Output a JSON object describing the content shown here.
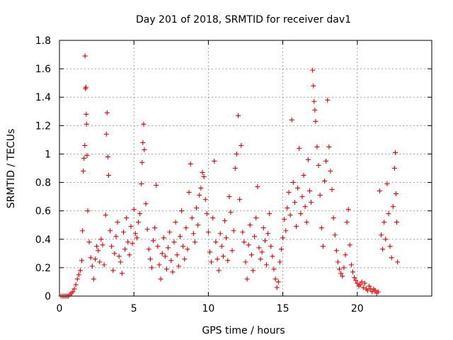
{
  "chart_data": {
    "type": "scatter",
    "title": "Day 201 of 2018, SRMTID for receiver dav1",
    "xlabel": "GPS time / hours",
    "ylabel": "SRMTID / TECUs",
    "xlim": [
      0,
      25
    ],
    "ylim": [
      0,
      1.8
    ],
    "xticks": [
      0,
      5,
      10,
      15,
      20
    ],
    "xtick_labels": [
      "0",
      "5",
      "10",
      "15",
      "20"
    ],
    "yticks": [
      0,
      0.2,
      0.4,
      0.6,
      0.8,
      1.0,
      1.2,
      1.4,
      1.6,
      1.8
    ],
    "ytick_labels": [
      "0",
      "0.2",
      "0.4",
      "0.6",
      "0.8",
      "1",
      "1.2",
      "1.4",
      "1.6",
      "1.8"
    ],
    "grid": true,
    "marker": "+",
    "series_color": "#e00000",
    "series": [
      {
        "name": "SRMTID",
        "points": [
          [
            0.1,
            0.0
          ],
          [
            0.2,
            0.0
          ],
          [
            0.3,
            0.0
          ],
          [
            0.4,
            0.0
          ],
          [
            0.5,
            0.0
          ],
          [
            0.6,
            0.0
          ],
          [
            0.7,
            0.01
          ],
          [
            0.8,
            0.02
          ],
          [
            0.9,
            0.03
          ],
          [
            1.0,
            0.05
          ],
          [
            1.1,
            0.08
          ],
          [
            1.2,
            0.12
          ],
          [
            1.3,
            0.15
          ],
          [
            1.4,
            0.18
          ],
          [
            1.5,
            0.25
          ],
          [
            1.55,
            0.46
          ],
          [
            1.6,
            0.88
          ],
          [
            1.65,
            0.97
          ],
          [
            1.7,
            1.06
          ],
          [
            1.72,
            1.69
          ],
          [
            1.75,
            1.46
          ],
          [
            1.78,
            1.47
          ],
          [
            1.8,
            1.28
          ],
          [
            1.82,
            1.21
          ],
          [
            1.85,
            0.99
          ],
          [
            1.9,
            0.6
          ],
          [
            2.0,
            0.38
          ],
          [
            2.1,
            0.27
          ],
          [
            2.2,
            0.21
          ],
          [
            2.3,
            0.12
          ],
          [
            2.4,
            0.26
          ],
          [
            2.5,
            0.35
          ],
          [
            2.6,
            0.32
          ],
          [
            2.7,
            0.24
          ],
          [
            2.8,
            0.4
          ],
          [
            2.9,
            0.36
          ],
          [
            3.0,
            0.22
          ],
          [
            3.1,
            0.57
          ],
          [
            3.15,
            1.14
          ],
          [
            3.2,
            1.29
          ],
          [
            3.25,
            0.98
          ],
          [
            3.3,
            0.85
          ],
          [
            3.4,
            0.46
          ],
          [
            3.5,
            0.35
          ],
          [
            3.6,
            0.18
          ],
          [
            3.7,
            0.3
          ],
          [
            3.8,
            0.42
          ],
          [
            3.9,
            0.52
          ],
          [
            4.0,
            0.28
          ],
          [
            4.1,
            0.24
          ],
          [
            4.2,
            0.16
          ],
          [
            4.3,
            0.45
          ],
          [
            4.4,
            0.33
          ],
          [
            4.5,
            0.55
          ],
          [
            4.6,
            0.38
          ],
          [
            4.7,
            0.29
          ],
          [
            4.8,
            0.49
          ],
          [
            4.9,
            0.37
          ],
          [
            5.0,
            0.61
          ],
          [
            5.1,
            0.44
          ],
          [
            5.2,
            0.41
          ],
          [
            5.3,
            0.52
          ],
          [
            5.4,
            0.58
          ],
          [
            5.5,
            0.79
          ],
          [
            5.55,
            0.94
          ],
          [
            5.6,
            1.08
          ],
          [
            5.65,
            1.21
          ],
          [
            5.7,
            1.03
          ],
          [
            5.8,
            0.65
          ],
          [
            5.9,
            0.47
          ],
          [
            6.0,
            0.33
          ],
          [
            6.1,
            0.26
          ],
          [
            6.2,
            0.2
          ],
          [
            6.3,
            0.39
          ],
          [
            6.4,
            0.48
          ],
          [
            6.5,
            0.78
          ],
          [
            6.6,
            0.35
          ],
          [
            6.7,
            0.22
          ],
          [
            6.8,
            0.12
          ],
          [
            6.9,
            0.3
          ],
          [
            7.0,
            0.41
          ],
          [
            7.1,
            0.28
          ],
          [
            7.2,
            0.19
          ],
          [
            7.3,
            0.34
          ],
          [
            7.4,
            0.45
          ],
          [
            7.5,
            0.25
          ],
          [
            7.6,
            0.17
          ],
          [
            7.7,
            0.38
          ],
          [
            7.8,
            0.52
          ],
          [
            7.9,
            0.29
          ],
          [
            8.0,
            0.21
          ],
          [
            8.1,
            0.42
          ],
          [
            8.2,
            0.6
          ],
          [
            8.3,
            0.35
          ],
          [
            8.4,
            0.26
          ],
          [
            8.5,
            0.48
          ],
          [
            8.6,
            0.33
          ],
          [
            8.7,
            0.73
          ],
          [
            8.8,
            0.93
          ],
          [
            8.9,
            0.55
          ],
          [
            9.0,
            0.44
          ],
          [
            9.1,
            0.38
          ],
          [
            9.2,
            0.62
          ],
          [
            9.3,
            0.5
          ],
          [
            9.4,
            0.71
          ],
          [
            9.5,
            0.76
          ],
          [
            9.6,
            0.87
          ],
          [
            9.7,
            0.84
          ],
          [
            9.8,
            0.68
          ],
          [
            9.9,
            0.58
          ],
          [
            10.0,
            0.45
          ],
          [
            10.1,
            0.31
          ],
          [
            10.2,
            0.24
          ],
          [
            10.3,
            0.55
          ],
          [
            10.4,
            0.95
          ],
          [
            10.5,
            0.38
          ],
          [
            10.6,
            0.26
          ],
          [
            10.7,
            0.18
          ],
          [
            10.8,
            0.44
          ],
          [
            10.9,
            0.35
          ],
          [
            11.0,
            0.28
          ],
          [
            11.1,
            0.53
          ],
          [
            11.2,
            0.41
          ],
          [
            11.3,
            0.25
          ],
          [
            11.4,
            0.7
          ],
          [
            11.5,
            0.59
          ],
          [
            11.6,
            0.32
          ],
          [
            11.7,
            0.46
          ],
          [
            11.8,
            0.9
          ],
          [
            11.9,
            1.0
          ],
          [
            12.0,
            1.27
          ],
          [
            12.1,
            0.68
          ],
          [
            12.2,
            1.06
          ],
          [
            12.3,
            0.45
          ],
          [
            12.4,
            0.38
          ],
          [
            12.5,
            0.24
          ],
          [
            12.6,
            0.12
          ],
          [
            12.7,
            0.36
          ],
          [
            12.8,
            0.5
          ],
          [
            12.9,
            0.29
          ],
          [
            13.0,
            0.18
          ],
          [
            13.1,
            0.42
          ],
          [
            13.2,
            0.55
          ],
          [
            13.3,
            0.77
          ],
          [
            13.4,
            0.34
          ],
          [
            13.5,
            0.26
          ],
          [
            13.6,
            0.31
          ],
          [
            13.7,
            0.48
          ],
          [
            13.8,
            0.39
          ],
          [
            13.9,
            0.22
          ],
          [
            14.0,
            0.44
          ],
          [
            14.1,
            0.58
          ],
          [
            14.2,
            0.35
          ],
          [
            14.3,
            0.28
          ],
          [
            14.4,
            0.19
          ],
          [
            14.5,
            0.12
          ],
          [
            14.6,
            0.06
          ],
          [
            14.7,
            0.1
          ],
          [
            14.8,
            0.24
          ],
          [
            14.9,
            0.33
          ],
          [
            15.0,
            0.41
          ],
          [
            15.1,
            0.54
          ],
          [
            15.2,
            0.46
          ],
          [
            15.3,
            0.62
          ],
          [
            15.4,
            0.73
          ],
          [
            15.5,
            0.57
          ],
          [
            15.6,
            1.24
          ],
          [
            15.7,
            0.8
          ],
          [
            15.8,
            0.66
          ],
          [
            15.9,
            0.49
          ],
          [
            16.0,
            0.76
          ],
          [
            16.1,
            1.04
          ],
          [
            16.2,
            0.58
          ],
          [
            16.3,
            0.7
          ],
          [
            16.4,
            0.85
          ],
          [
            16.5,
            0.63
          ],
          [
            16.6,
            0.52
          ],
          [
            16.7,
            0.96
          ],
          [
            16.8,
            0.74
          ],
          [
            16.9,
            0.66
          ],
          [
            17.0,
            1.59
          ],
          [
            17.05,
            1.48
          ],
          [
            17.1,
            1.37
          ],
          [
            17.15,
            1.31
          ],
          [
            17.2,
            1.23
          ],
          [
            17.3,
            1.05
          ],
          [
            17.4,
            0.92
          ],
          [
            17.5,
            0.71
          ],
          [
            17.6,
            0.48
          ],
          [
            17.7,
            0.35
          ],
          [
            17.8,
            0.81
          ],
          [
            17.9,
            0.95
          ],
          [
            18.0,
            1.38
          ],
          [
            18.1,
            1.05
          ],
          [
            18.2,
            0.88
          ],
          [
            18.3,
            0.75
          ],
          [
            18.4,
            0.55
          ],
          [
            18.5,
            0.43
          ],
          [
            18.6,
            0.32
          ],
          [
            18.7,
            0.24
          ],
          [
            18.8,
            0.19
          ],
          [
            18.9,
            0.16
          ],
          [
            19.0,
            0.14
          ],
          [
            19.1,
            0.2
          ],
          [
            19.2,
            0.29
          ],
          [
            19.3,
            0.52
          ],
          [
            19.4,
            0.61
          ],
          [
            19.5,
            0.36
          ],
          [
            19.6,
            0.22
          ],
          [
            19.7,
            0.17
          ],
          [
            19.8,
            0.13
          ],
          [
            19.9,
            0.11
          ],
          [
            20.0,
            0.09
          ],
          [
            20.1,
            0.07
          ],
          [
            20.2,
            0.08
          ],
          [
            20.3,
            0.1
          ],
          [
            20.4,
            0.06
          ],
          [
            20.5,
            0.09
          ],
          [
            20.6,
            0.05
          ],
          [
            20.7,
            0.04
          ],
          [
            20.8,
            0.07
          ],
          [
            20.9,
            0.05
          ],
          [
            21.0,
            0.03
          ],
          [
            21.1,
            0.05
          ],
          [
            21.2,
            0.04
          ],
          [
            21.3,
            0.02
          ],
          [
            21.4,
            0.03
          ],
          [
            21.5,
            0.74
          ],
          [
            21.6,
            0.43
          ],
          [
            21.7,
            0.33
          ],
          [
            21.8,
            0.52
          ],
          [
            21.9,
            0.4
          ],
          [
            22.0,
            0.79
          ],
          [
            22.1,
            0.58
          ],
          [
            22.2,
            0.35
          ],
          [
            22.3,
            0.27
          ],
          [
            22.4,
            0.63
          ],
          [
            22.5,
            0.9
          ],
          [
            22.55,
            1.01
          ],
          [
            22.6,
            0.72
          ],
          [
            22.65,
            0.52
          ],
          [
            22.7,
            0.24
          ]
        ]
      }
    ]
  }
}
